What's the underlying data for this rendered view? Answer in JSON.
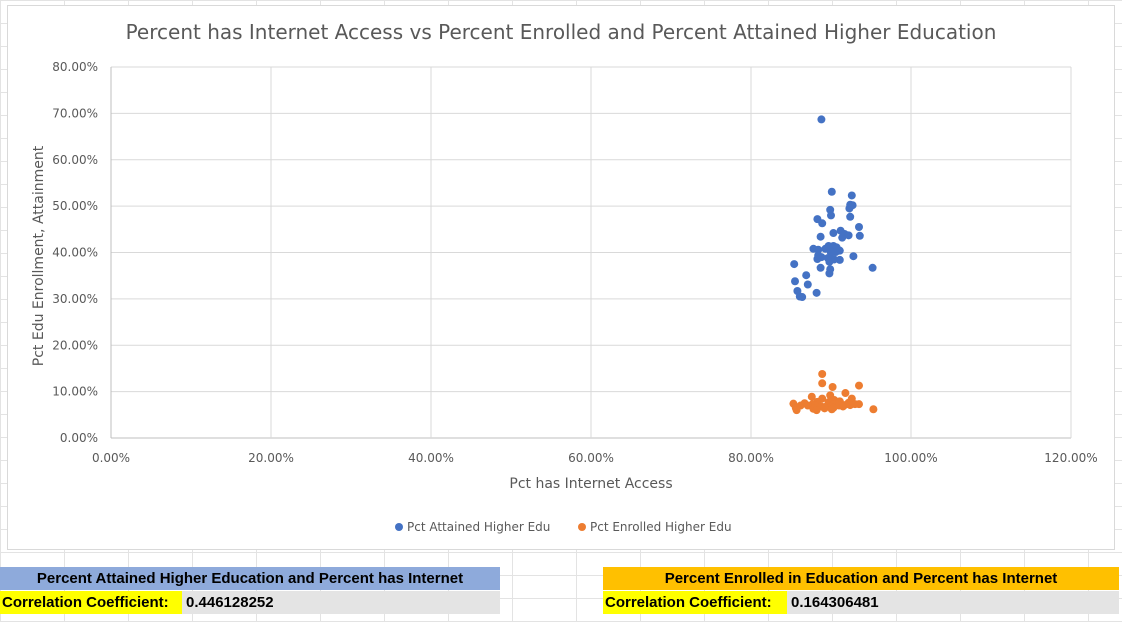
{
  "colors": {
    "attained": "#4472c4",
    "enrolled": "#ed7d31",
    "attained_header_bg": "#8eaadb",
    "enrolled_header_bg": "#ffc000",
    "label_bg": "#ffff00",
    "value_bg": "#e4e4e4"
  },
  "chart_data": {
    "type": "scatter",
    "title": "Percent has Internet Access vs Percent Enrolled and Percent Attained Higher Education",
    "xlabel": "Pct has Internet Access",
    "ylabel": "Pct Edu Enrollment, Attainment",
    "xlim": [
      0,
      1.2
    ],
    "ylim": [
      0,
      0.8
    ],
    "x_ticks": [
      "0.00%",
      "20.00%",
      "40.00%",
      "60.00%",
      "80.00%",
      "100.00%",
      "120.00%"
    ],
    "y_ticks": [
      "0.00%",
      "10.00%",
      "20.00%",
      "30.00%",
      "40.00%",
      "50.00%",
      "60.00%",
      "70.00%",
      "80.00%"
    ],
    "grid": true,
    "legend_position": "bottom",
    "series": [
      {
        "name": "Pct Attained Higher Edu",
        "color": "#4472c4",
        "points": [
          [
            0.888,
            0.687
          ],
          [
            0.901,
            0.531
          ],
          [
            0.926,
            0.523
          ],
          [
            0.924,
            0.503
          ],
          [
            0.927,
            0.502
          ],
          [
            0.923,
            0.495
          ],
          [
            0.899,
            0.492
          ],
          [
            0.9,
            0.48
          ],
          [
            0.924,
            0.477
          ],
          [
            0.883,
            0.472
          ],
          [
            0.889,
            0.463
          ],
          [
            0.935,
            0.455
          ],
          [
            0.912,
            0.447
          ],
          [
            0.903,
            0.442
          ],
          [
            0.917,
            0.44
          ],
          [
            0.922,
            0.437
          ],
          [
            0.936,
            0.436
          ],
          [
            0.887,
            0.434
          ],
          [
            0.914,
            0.432
          ],
          [
            0.897,
            0.414
          ],
          [
            0.903,
            0.414
          ],
          [
            0.907,
            0.411
          ],
          [
            0.878,
            0.408
          ],
          [
            0.893,
            0.408
          ],
          [
            0.884,
            0.406
          ],
          [
            0.899,
            0.404
          ],
          [
            0.911,
            0.404
          ],
          [
            0.906,
            0.401
          ],
          [
            0.9,
            0.399
          ],
          [
            0.884,
            0.394
          ],
          [
            0.888,
            0.39
          ],
          [
            0.883,
            0.386
          ],
          [
            0.928,
            0.392
          ],
          [
            0.896,
            0.388
          ],
          [
            0.904,
            0.385
          ],
          [
            0.911,
            0.384
          ],
          [
            0.898,
            0.38
          ],
          [
            0.854,
            0.375
          ],
          [
            0.887,
            0.367
          ],
          [
            0.899,
            0.364
          ],
          [
            0.952,
            0.367
          ],
          [
            0.898,
            0.355
          ],
          [
            0.869,
            0.351
          ],
          [
            0.855,
            0.338
          ],
          [
            0.871,
            0.331
          ],
          [
            0.858,
            0.317
          ],
          [
            0.882,
            0.313
          ],
          [
            0.861,
            0.305
          ],
          [
            0.864,
            0.304
          ]
        ]
      },
      {
        "name": "Pct Enrolled Higher Edu",
        "color": "#ed7d31",
        "points": [
          [
            0.889,
            0.138
          ],
          [
            0.889,
            0.118
          ],
          [
            0.935,
            0.113
          ],
          [
            0.902,
            0.11
          ],
          [
            0.899,
            0.092
          ],
          [
            0.918,
            0.097
          ],
          [
            0.876,
            0.089
          ],
          [
            0.889,
            0.085
          ],
          [
            0.926,
            0.085
          ],
          [
            0.904,
            0.082
          ],
          [
            0.911,
            0.079
          ],
          [
            0.883,
            0.078
          ],
          [
            0.897,
            0.077
          ],
          [
            0.867,
            0.075
          ],
          [
            0.922,
            0.076
          ],
          [
            0.853,
            0.074
          ],
          [
            0.877,
            0.073
          ],
          [
            0.903,
            0.072
          ],
          [
            0.93,
            0.073
          ],
          [
            0.935,
            0.073
          ],
          [
            0.862,
            0.07
          ],
          [
            0.871,
            0.07
          ],
          [
            0.88,
            0.07
          ],
          [
            0.895,
            0.069
          ],
          [
            0.91,
            0.07
          ],
          [
            0.917,
            0.071
          ],
          [
            0.924,
            0.071
          ],
          [
            0.888,
            0.068
          ],
          [
            0.9,
            0.067
          ],
          [
            0.915,
            0.068
          ],
          [
            0.856,
            0.065
          ],
          [
            0.892,
            0.064
          ],
          [
            0.903,
            0.065
          ],
          [
            0.878,
            0.063
          ],
          [
            0.901,
            0.062
          ],
          [
            0.857,
            0.06
          ],
          [
            0.953,
            0.062
          ],
          [
            0.882,
            0.06
          ]
        ]
      }
    ]
  },
  "stats": {
    "attained": {
      "header": "Percent Attained Higher Education and Percent has Internet",
      "label": "Correlation Coefficient:",
      "value": "0.446128252"
    },
    "enrolled": {
      "header": "Percent Enrolled in Education and Percent has Internet",
      "label": "Correlation Coefficient:",
      "value": "0.164306481"
    }
  }
}
